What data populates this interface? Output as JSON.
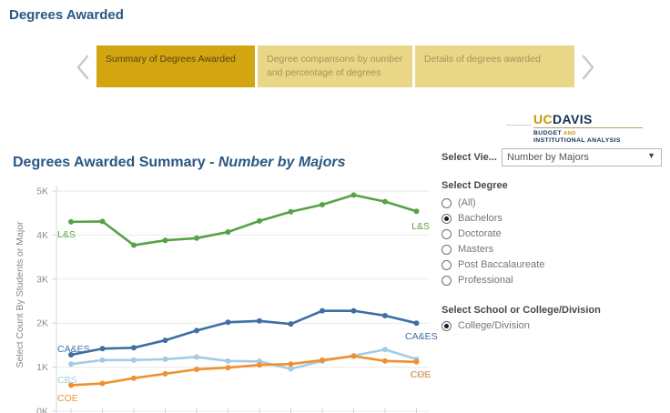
{
  "page": {
    "title": "Degrees Awarded"
  },
  "nav_tabs": {
    "items": [
      {
        "label": "Summary of Degrees Awarded",
        "active": true
      },
      {
        "label": "Degree comparisons by number and percentage of degrees",
        "active": false
      },
      {
        "label": "Details of degrees awarded",
        "active": false
      }
    ]
  },
  "logo": {
    "uc": "UC",
    "davis": "DAVIS",
    "budget": "BUDGET",
    "and": " AND",
    "line2": "INSTITUTIONAL ANALYSIS"
  },
  "filters": {
    "view_label": "Select Vie...",
    "view_value": "Number by Majors",
    "caret_icon": "▼",
    "degree": {
      "label": "Select Degree",
      "options": [
        {
          "label": "(All)",
          "selected": false
        },
        {
          "label": "Bachelors",
          "selected": true
        },
        {
          "label": "Doctorate",
          "selected": false
        },
        {
          "label": "Masters",
          "selected": false
        },
        {
          "label": "Post Baccalaureate",
          "selected": false
        },
        {
          "label": "Professional",
          "selected": false
        }
      ]
    },
    "school": {
      "label": "Select School or College/Division",
      "options": [
        {
          "label": "College/Division",
          "selected": true
        }
      ]
    }
  },
  "chart": {
    "title_regular": "Degrees Awarded Summary - ",
    "title_italic": "Number by Majors"
  },
  "chart_data": {
    "type": "line",
    "title": "Degrees Awarded Summary - Number by Majors",
    "ylabel": "Select Count By Students or Major",
    "unit": "thousands of degrees (K)",
    "y_ticks": [
      "0K",
      "1K",
      "2K",
      "3K",
      "4K",
      "5K"
    ],
    "ylim": [
      0,
      5.3
    ],
    "x_axis_labels_visible": false,
    "x_point_count": 12,
    "grid": true,
    "legend_position": "line-ends",
    "series": [
      {
        "name": "L&S",
        "color": "#57a244",
        "values": [
          4.3,
          4.31,
          3.77,
          3.88,
          3.93,
          4.07,
          4.32,
          4.53,
          4.69,
          4.91,
          4.76,
          4.54
        ]
      },
      {
        "name": "CA&ES",
        "color": "#3f6ea5",
        "values": [
          1.28,
          1.42,
          1.44,
          1.61,
          1.83,
          2.02,
          2.05,
          1.98,
          2.28,
          2.28,
          2.17,
          2.0
        ]
      },
      {
        "name": "CBS",
        "color": "#a4cbe6",
        "values": [
          1.07,
          1.16,
          1.16,
          1.18,
          1.23,
          1.14,
          1.13,
          0.96,
          1.14,
          1.26,
          1.4,
          1.18
        ]
      },
      {
        "name": "COE",
        "color": "#f18f2f",
        "values": [
          0.59,
          0.63,
          0.75,
          0.85,
          0.95,
          0.99,
          1.05,
          1.07,
          1.16,
          1.25,
          1.14,
          1.12
        ]
      }
    ]
  }
}
